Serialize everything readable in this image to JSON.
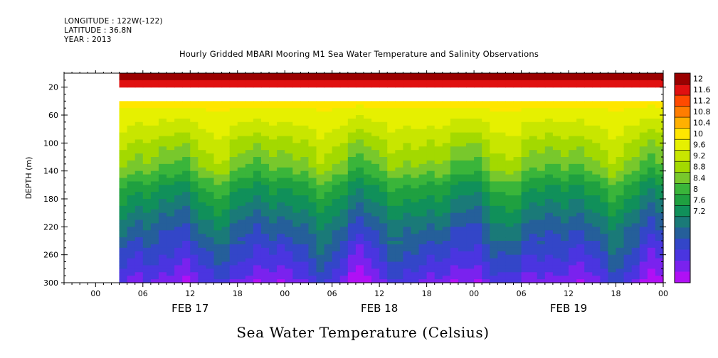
{
  "header": {
    "longitude": "LONGITUDE : 122W(-122)",
    "latitude": "LATITUDE : 36.8N",
    "year": "YEAR : 2013"
  },
  "chart_data": {
    "type": "heatmap",
    "title": "Hourly Gridded MBARI Mooring M1 Sea Water Temperature and Salinity Observations",
    "ylabel": "DEPTH (m)",
    "bottom_title": "Sea Water Temperature (Celsius)",
    "y_reversed": true,
    "ylim": [
      300,
      0
    ],
    "y_ticks": [
      20,
      60,
      100,
      140,
      180,
      220,
      260,
      300
    ],
    "x_range_hours": [
      "2013-02-16 20:00",
      "2013-02-20 00:00"
    ],
    "data_start": "2013-02-17 03:00",
    "x_tick_labels": [
      "00",
      "06",
      "12",
      "18",
      "00",
      "06",
      "12",
      "18",
      "00",
      "06",
      "12",
      "18",
      "00"
    ],
    "x_day_labels": [
      "FEB 17",
      "FEB 18",
      "FEB 19"
    ],
    "missing_depth_band": [
      20,
      40
    ],
    "colorbar": {
      "levels": [
        7.2,
        7.6,
        8,
        8.4,
        8.8,
        9.2,
        9.6,
        10,
        10.4,
        10.8,
        11.2,
        11.6,
        12
      ],
      "labels": [
        "12",
        "11.6",
        "11.2",
        "10.8",
        "10.4",
        "10",
        "9.6",
        "9.2",
        "8.8",
        "8.4",
        "8",
        "7.6",
        "7.2"
      ],
      "colors": [
        "#9a0000",
        "#e01010",
        "#ff4a00",
        "#ff7d00",
        "#ffb000",
        "#ffe600",
        "#e6f000",
        "#c8e600",
        "#a3d900",
        "#78c82c",
        "#3ab53a",
        "#1fa040",
        "#10905a",
        "#1a7a78",
        "#255f9a",
        "#3346c8",
        "#4a35e0",
        "#7a22ee",
        "#b010f5"
      ]
    },
    "profile_depths": [
      10,
      45,
      60,
      80,
      100,
      120,
      140,
      160,
      180,
      200,
      220,
      240,
      260,
      280,
      300
    ],
    "profile_mean_temp": [
      11.9,
      10.6,
      10.4,
      10.2,
      9.95,
      9.75,
      9.5,
      9.1,
      8.85,
      8.6,
      8.35,
      8.15,
      7.95,
      7.75,
      7.5
    ]
  }
}
